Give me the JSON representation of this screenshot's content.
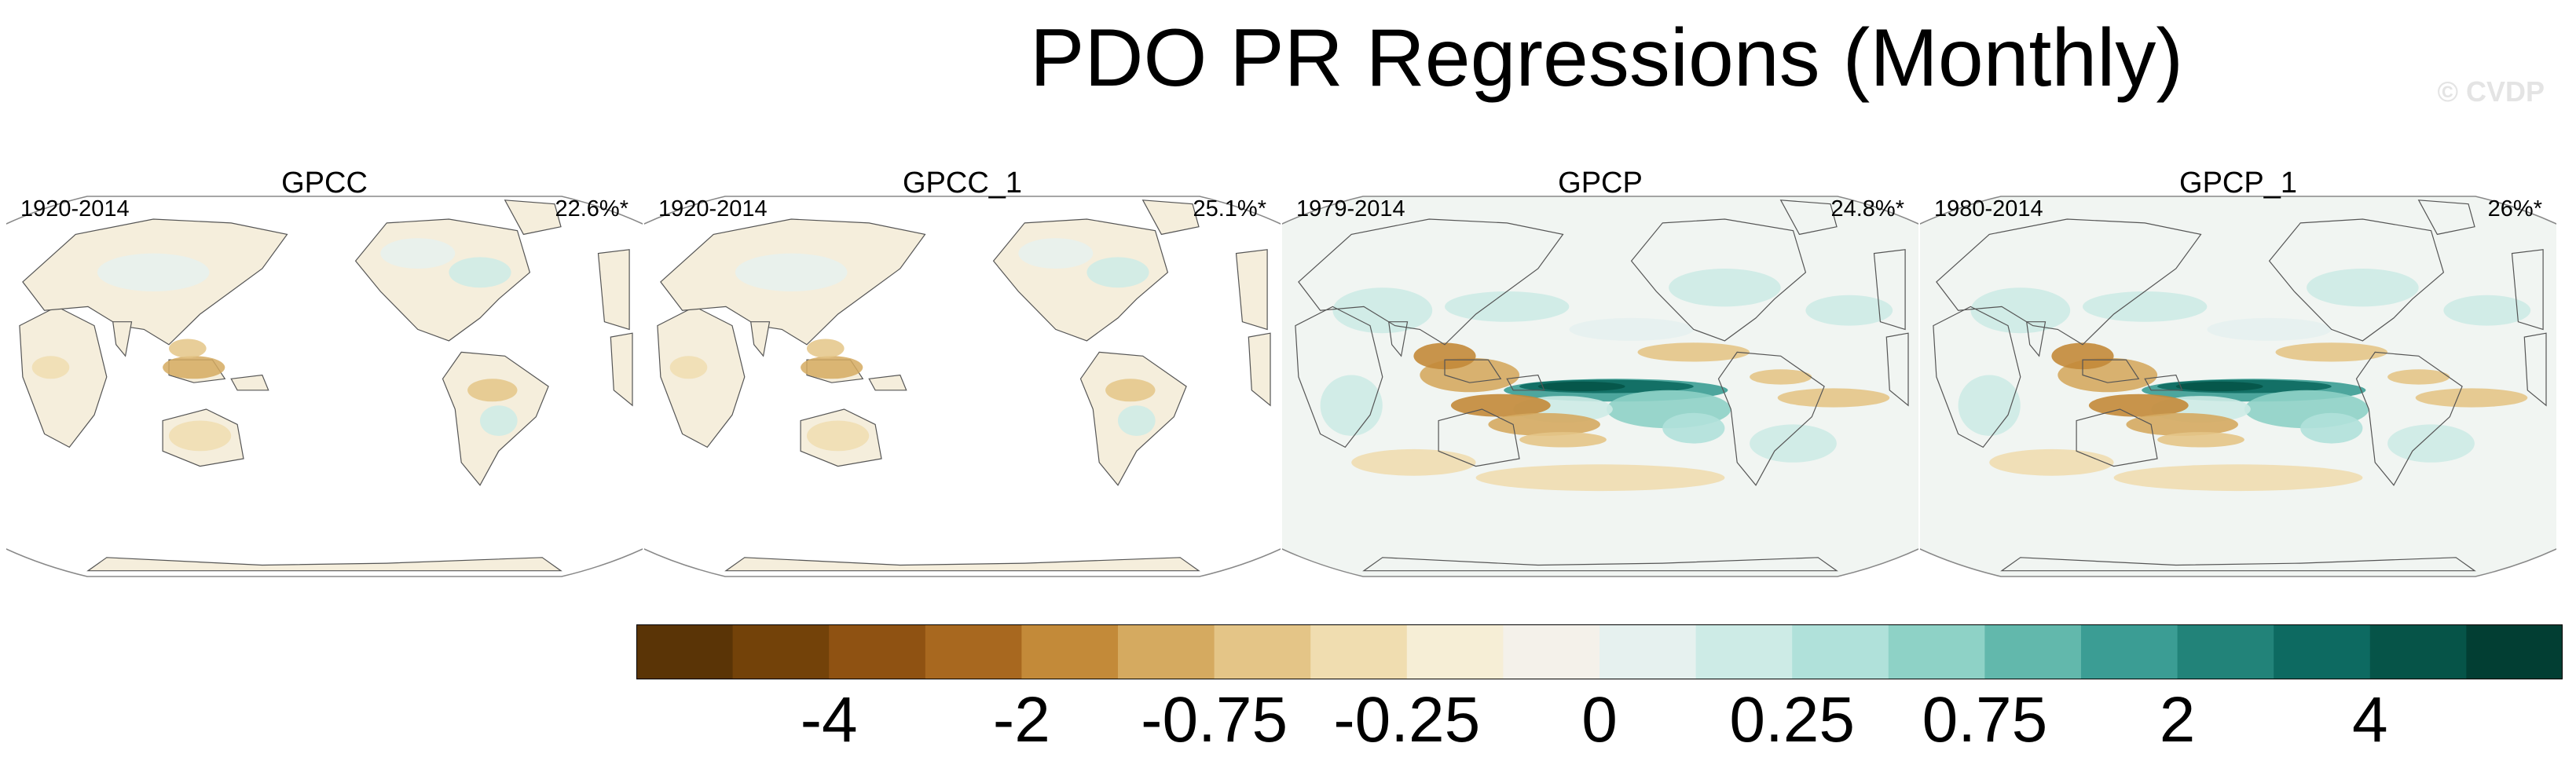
{
  "chart_data": {
    "type": "map",
    "title": "PDO PR Regressions (Monthly)",
    "watermark": "© CVDP",
    "panels": [
      {
        "name": "GPCC",
        "years": "1920-2014",
        "pct": "22.6%*",
        "coverage": "land",
        "strength": 0.45
      },
      {
        "name": "GPCC_1",
        "years": "1920-2014",
        "pct": "25.1%*",
        "coverage": "land",
        "strength": 0.45
      },
      {
        "name": "GPCP",
        "years": "1979-2014",
        "pct": "24.8%*",
        "coverage": "global",
        "strength": 1.0
      },
      {
        "name": "GPCP_1",
        "years": "1980-2014",
        "pct": "26%*",
        "coverage": "global",
        "strength": 1.0
      }
    ],
    "colorbar": {
      "colors": [
        "#5a3406",
        "#734209",
        "#8f5212",
        "#a8681f",
        "#c38a39",
        "#d5aa60",
        "#e4c587",
        "#f0ddb0",
        "#f6eed6",
        "#f4f1ea",
        "#e6f1ef",
        "#cdebe6",
        "#b0e1da",
        "#8ed2c6",
        "#62b8ac",
        "#3b9d94",
        "#228379",
        "#0d6a61",
        "#065448",
        "#023e33"
      ],
      "labels": [
        "-4",
        "-2",
        "-0.75",
        "-0.25",
        "0",
        "0.25",
        "0.75",
        "2",
        "4"
      ],
      "label_boundaries": [
        2,
        4,
        6,
        8,
        10,
        12,
        14,
        16,
        18
      ]
    }
  }
}
